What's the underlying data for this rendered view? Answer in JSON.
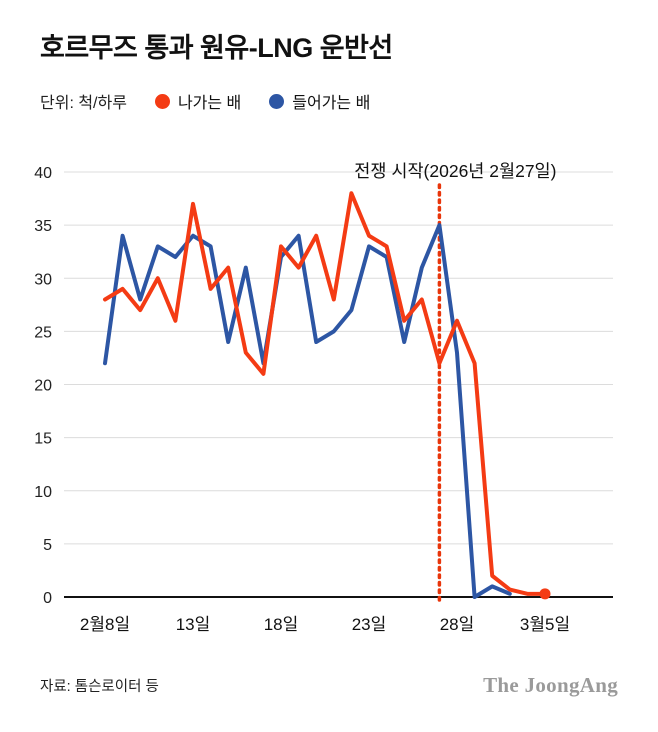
{
  "header": {
    "title": "호르무즈 통과 원유-LNG 운반선",
    "unit_label": "단위: 척/하루"
  },
  "legend": [
    {
      "key": "outgoing",
      "label": "나가는 배",
      "color": "#f43b14"
    },
    {
      "key": "incoming",
      "label": "들어가는 배",
      "color": "#2d56a4"
    }
  ],
  "chart_data": {
    "type": "line",
    "title": "호르무즈 통과 원유-LNG 운반선",
    "unit": "척/하루",
    "ylim": [
      0,
      40
    ],
    "y_ticks": [
      0,
      5,
      10,
      15,
      20,
      25,
      30,
      35,
      40
    ],
    "x_tick_labels": [
      "2월8일",
      "13일",
      "18일",
      "23일",
      "28일",
      "3월5일"
    ],
    "x_tick_indices": [
      0,
      5,
      10,
      15,
      20,
      25
    ],
    "grid": true,
    "legend_position": "top",
    "annotation": {
      "label": "전쟁 시작(2026년 2월27일)",
      "x_index": 19,
      "color": "#e8350a",
      "style": "dotted-vertical"
    },
    "series": [
      {
        "key": "outgoing",
        "name": "나가는 배",
        "color": "#f43b14",
        "end_dot": true,
        "values": [
          28,
          29,
          27,
          30,
          26,
          37,
          29,
          31,
          23,
          21,
          33,
          31,
          34,
          28,
          38,
          34,
          33,
          26,
          28,
          22,
          26,
          22,
          2,
          0.7,
          0.3,
          0.3
        ]
      },
      {
        "key": "incoming",
        "name": "들어가는 배",
        "color": "#2d56a4",
        "end_dot": false,
        "values": [
          22,
          34,
          28,
          33,
          32,
          34,
          33,
          24,
          31,
          22,
          32,
          34,
          24,
          25,
          27,
          33,
          32,
          24,
          31,
          35,
          23,
          0,
          1,
          0.3
        ]
      }
    ]
  },
  "footer": {
    "source": "자료: 톰슨로이터 등",
    "logo": "The JoongAng"
  }
}
